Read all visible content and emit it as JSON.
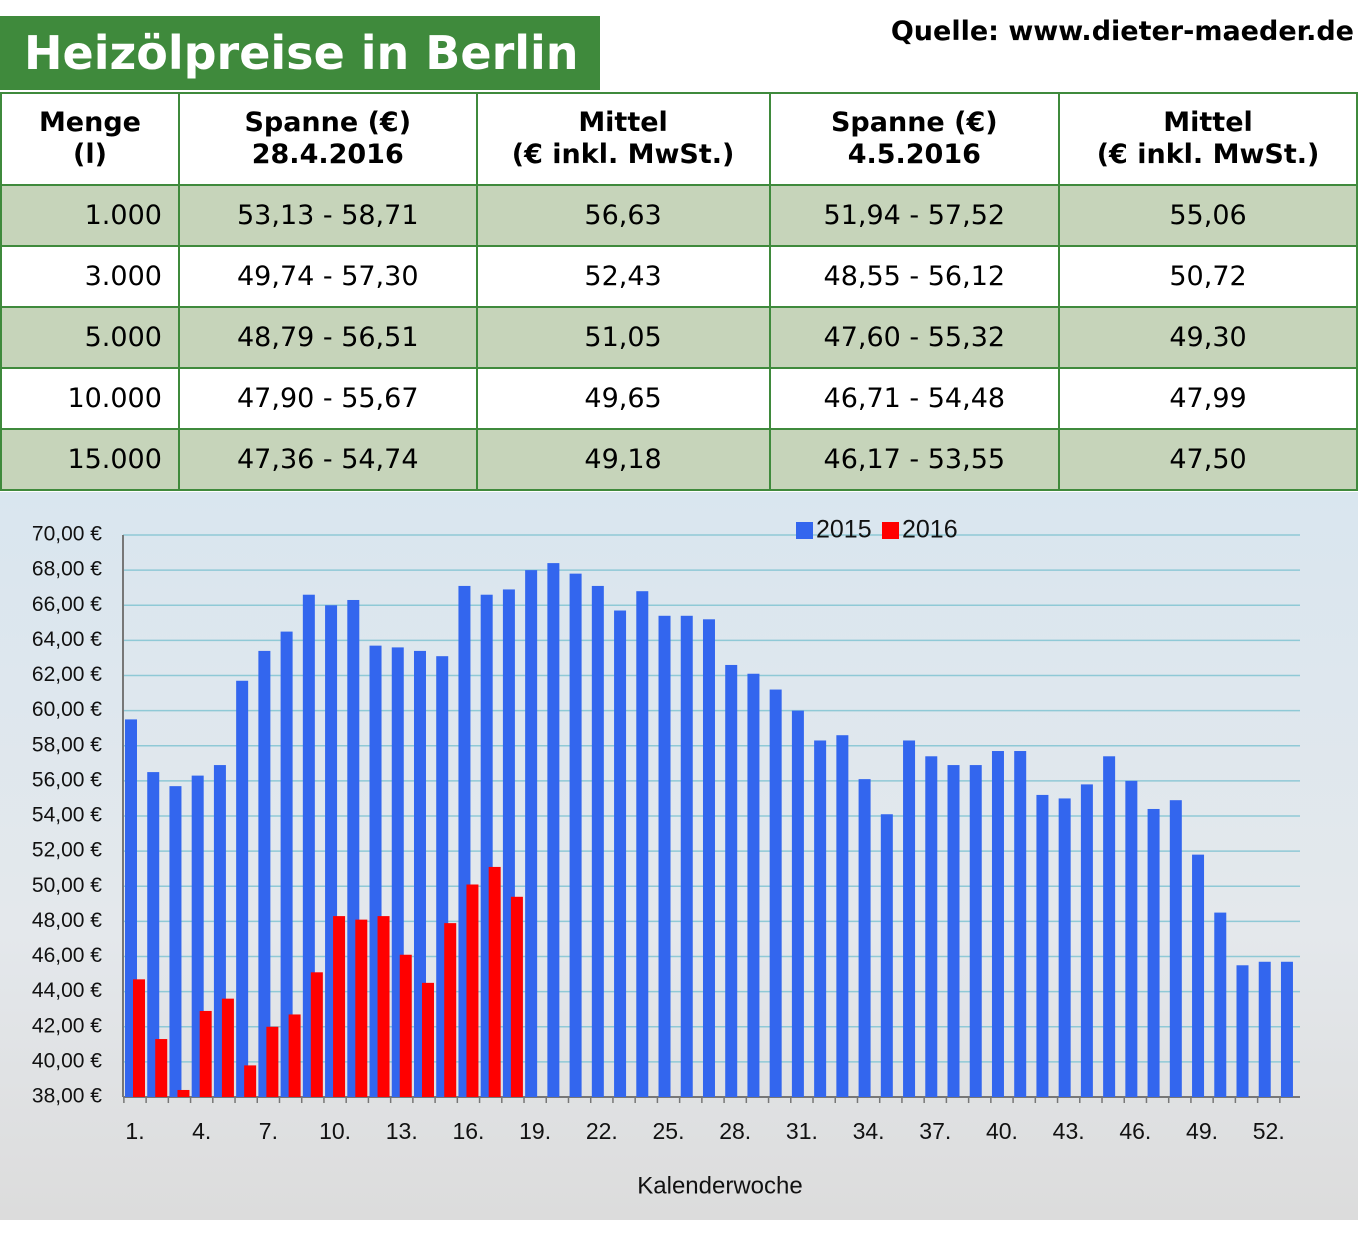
{
  "header": {
    "title": "Heizölpreise in Berlin",
    "source": "Quelle: www.dieter-maeder.de"
  },
  "table": {
    "header": [
      [
        "Menge",
        "(l)"
      ],
      [
        "Spanne (€)",
        "28.4.2016"
      ],
      [
        "Mittel",
        "(€ inkl. MwSt.)"
      ],
      [
        "Spanne (€)",
        "4.5.2016"
      ],
      [
        "Mittel",
        "(€ inkl. MwSt.)"
      ]
    ],
    "rows": [
      [
        "1.000",
        "53,13 - 58,71",
        "56,63",
        "51,94 - 57,52",
        "55,06"
      ],
      [
        "3.000",
        "49,74 - 57,30",
        "52,43",
        "48,55 - 56,12",
        "50,72"
      ],
      [
        "5.000",
        "48,79 - 56,51",
        "51,05",
        "47,60 - 55,32",
        "49,30"
      ],
      [
        "10.000",
        "47,90 - 55,67",
        "49,65",
        "46,71 - 54,48",
        "47,99"
      ],
      [
        "15.000",
        "47,36 - 54,74",
        "49,18",
        "46,17 - 53,55",
        "47,50"
      ]
    ]
  },
  "chart_data": {
    "type": "bar",
    "x_label": "Kalenderwoche",
    "categories": [
      "1.",
      null,
      null,
      "4.",
      null,
      null,
      "7.",
      null,
      null,
      "10.",
      null,
      null,
      "13.",
      null,
      null,
      "16.",
      null,
      null,
      "19.",
      null,
      null,
      "22.",
      null,
      null,
      "25.",
      null,
      null,
      "28.",
      null,
      null,
      "31.",
      null,
      null,
      "34.",
      null,
      null,
      "37.",
      null,
      null,
      "40.",
      null,
      null,
      "43.",
      null,
      null,
      "46.",
      null,
      null,
      "49.",
      null,
      null,
      "52.",
      null
    ],
    "series": [
      {
        "name": "2015",
        "color": "#3366ee",
        "values": [
          59.5,
          56.5,
          55.7,
          56.3,
          56.9,
          61.7,
          63.4,
          64.5,
          66.6,
          66.0,
          66.3,
          63.7,
          63.6,
          63.4,
          63.1,
          67.1,
          66.6,
          66.9,
          68.0,
          68.4,
          67.8,
          67.1,
          65.7,
          66.8,
          65.4,
          65.4,
          65.2,
          62.6,
          62.1,
          61.2,
          60.0,
          58.3,
          58.6,
          56.1,
          54.1,
          58.3,
          57.4,
          56.9,
          56.9,
          57.7,
          57.7,
          55.2,
          55.0,
          55.8,
          57.4,
          56.0,
          54.4,
          54.9,
          51.8,
          48.5,
          45.5,
          45.7,
          45.7
        ]
      },
      {
        "name": "2016",
        "color": "#ff0000",
        "values": [
          44.7,
          41.3,
          38.4,
          42.9,
          43.6,
          39.8,
          42.0,
          42.7,
          45.1,
          48.3,
          48.1,
          48.3,
          46.1,
          44.5,
          47.9,
          50.1,
          51.1,
          49.4,
          null,
          null,
          null,
          null,
          null,
          null,
          null,
          null,
          null,
          null,
          null,
          null,
          null,
          null,
          null,
          null,
          null,
          null,
          null,
          null,
          null,
          null,
          null,
          null,
          null,
          null,
          null,
          null,
          null,
          null,
          null,
          null,
          null,
          null,
          null
        ]
      }
    ],
    "ylim": [
      38,
      70
    ],
    "yticks": [
      {
        "value": 38,
        "label": "38,00 €"
      },
      {
        "value": 40,
        "label": "40,00 €"
      },
      {
        "value": 42,
        "label": "42,00 €"
      },
      {
        "value": 44,
        "label": "44,00 €"
      },
      {
        "value": 46,
        "label": "46,00 €"
      },
      {
        "value": 48,
        "label": "48,00 €"
      },
      {
        "value": 50,
        "label": "50,00 €"
      },
      {
        "value": 52,
        "label": "52,00 €"
      },
      {
        "value": 54,
        "label": "54,00 €"
      },
      {
        "value": 56,
        "label": "56,00 €"
      },
      {
        "value": 58,
        "label": "58,00 €"
      },
      {
        "value": 60,
        "label": "60,00 €"
      },
      {
        "value": 62,
        "label": "62,00 €"
      },
      {
        "value": 64,
        "label": "64,00 €"
      },
      {
        "value": 66,
        "label": "66,00 €"
      },
      {
        "value": 68,
        "label": "68,00 €"
      },
      {
        "value": 70,
        "label": "70,00 €"
      }
    ],
    "grid": true,
    "legend": "top"
  }
}
